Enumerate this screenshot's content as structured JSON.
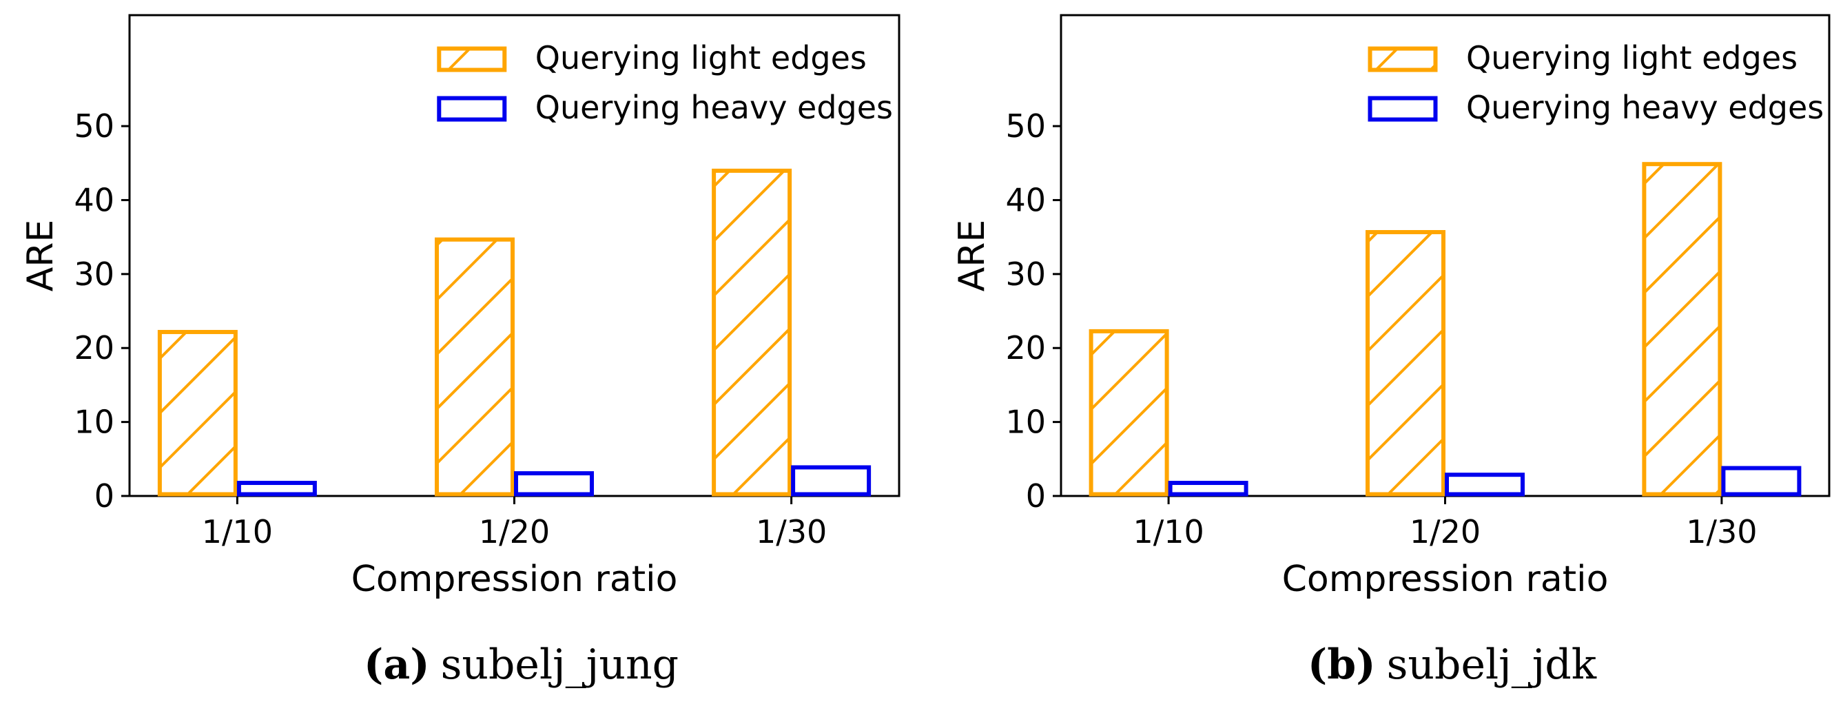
{
  "colors": {
    "light_edges": "#FFA500",
    "heavy_edges": "#0000EE",
    "axis": "#000000",
    "background": "#FFFFFF"
  },
  "chart_data": [
    {
      "type": "bar",
      "panel_label": "(a)",
      "caption": "subelj_jung",
      "categories": [
        "1/10",
        "1/20",
        "1/30"
      ],
      "series": [
        {
          "name": "Querying light edges",
          "values": [
            22.4,
            34.9,
            44.2
          ],
          "hatch": "diagonal"
        },
        {
          "name": "Querying heavy edges",
          "values": [
            2.0,
            3.3,
            4.1
          ],
          "hatch": "none"
        }
      ],
      "xlabel": "Compression ratio",
      "ylabel": "ARE",
      "ylim": [
        0,
        65
      ],
      "yticks": [
        0,
        10,
        20,
        30,
        40,
        50
      ],
      "legend": "top-right",
      "grid": false
    },
    {
      "type": "bar",
      "panel_label": "(b)",
      "caption": "subelj_jdk",
      "categories": [
        "1/10",
        "1/20",
        "1/30"
      ],
      "series": [
        {
          "name": "Querying light edges",
          "values": [
            22.5,
            35.9,
            45.1
          ],
          "hatch": "diagonal"
        },
        {
          "name": "Querying heavy edges",
          "values": [
            2.0,
            3.1,
            4.0
          ],
          "hatch": "none"
        }
      ],
      "xlabel": "Compression ratio",
      "ylabel": "ARE",
      "ylim": [
        0,
        65
      ],
      "yticks": [
        0,
        10,
        20,
        30,
        40,
        50
      ],
      "legend": "top-right",
      "grid": false
    }
  ]
}
